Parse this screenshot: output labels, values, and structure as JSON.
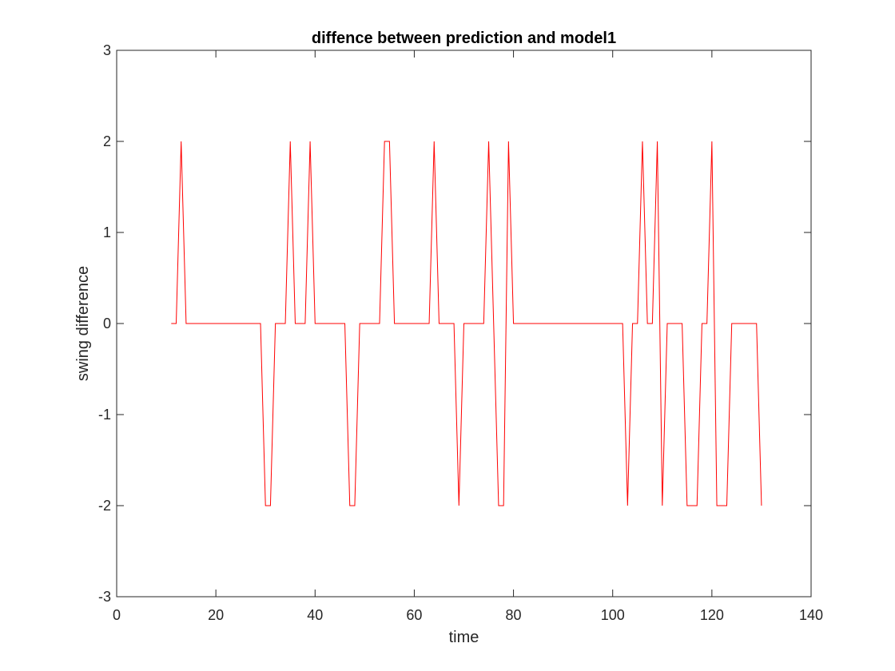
{
  "chart_data": {
    "type": "line",
    "title": "diffence between prediction and model1",
    "xlabel": "time",
    "ylabel": "swing difference",
    "xlim": [
      0,
      140
    ],
    "ylim": [
      -3,
      3
    ],
    "xticks": [
      0,
      20,
      40,
      60,
      80,
      100,
      120,
      140
    ],
    "yticks": [
      -3,
      -2,
      -1,
      0,
      1,
      2,
      3
    ],
    "xtick_labels": [
      "0",
      "20",
      "40",
      "60",
      "80",
      "100",
      "120",
      "140"
    ],
    "ytick_labels": [
      "-3",
      "-2",
      "-1",
      "0",
      "1",
      "2",
      "3"
    ],
    "grid": false,
    "box": true,
    "series": [
      {
        "color": "#ff0000",
        "x": [
          11,
          12,
          13,
          14,
          15,
          16,
          17,
          18,
          19,
          20,
          21,
          22,
          23,
          24,
          25,
          26,
          27,
          28,
          29,
          30,
          31,
          32,
          33,
          34,
          35,
          36,
          37,
          38,
          39,
          40,
          41,
          42,
          43,
          44,
          45,
          46,
          47,
          48,
          49,
          50,
          51,
          52,
          53,
          54,
          55,
          56,
          57,
          58,
          59,
          60,
          61,
          62,
          63,
          64,
          65,
          66,
          67,
          68,
          69,
          70,
          71,
          72,
          73,
          74,
          75,
          76,
          77,
          78,
          79,
          80,
          81,
          82,
          83,
          84,
          85,
          86,
          87,
          88,
          89,
          90,
          91,
          92,
          93,
          94,
          95,
          96,
          97,
          98,
          99,
          100,
          101,
          102,
          103,
          104,
          105,
          106,
          107,
          108,
          109,
          110,
          111,
          112,
          113,
          114,
          115,
          116,
          117,
          118,
          119,
          120,
          121,
          122,
          123,
          124,
          125,
          126,
          127,
          128,
          129,
          130
        ],
        "y": [
          0,
          0,
          2,
          0,
          0,
          0,
          0,
          0,
          0,
          0,
          0,
          0,
          0,
          0,
          0,
          0,
          0,
          0,
          0,
          -2,
          -2,
          0,
          0,
          0,
          2,
          0,
          0,
          0,
          2,
          0,
          0,
          0,
          0,
          0,
          0,
          0,
          -2,
          -2,
          0,
          0,
          0,
          0,
          0,
          2,
          2,
          0,
          0,
          0,
          0,
          0,
          0,
          0,
          0,
          2,
          0,
          0,
          0,
          0,
          -2,
          0,
          0,
          0,
          0,
          0,
          2,
          0,
          -2,
          -2,
          2,
          0,
          0,
          0,
          0,
          0,
          0,
          0,
          0,
          0,
          0,
          0,
          0,
          0,
          0,
          0,
          0,
          0,
          0,
          0,
          0,
          0,
          0,
          0,
          -2,
          0,
          0,
          2,
          0,
          0,
          2,
          -2,
          0,
          0,
          0,
          0,
          -2,
          -2,
          -2,
          0,
          0,
          2,
          -2,
          -2,
          -2,
          0,
          0,
          0,
          0,
          0,
          0,
          -2
        ]
      }
    ]
  }
}
